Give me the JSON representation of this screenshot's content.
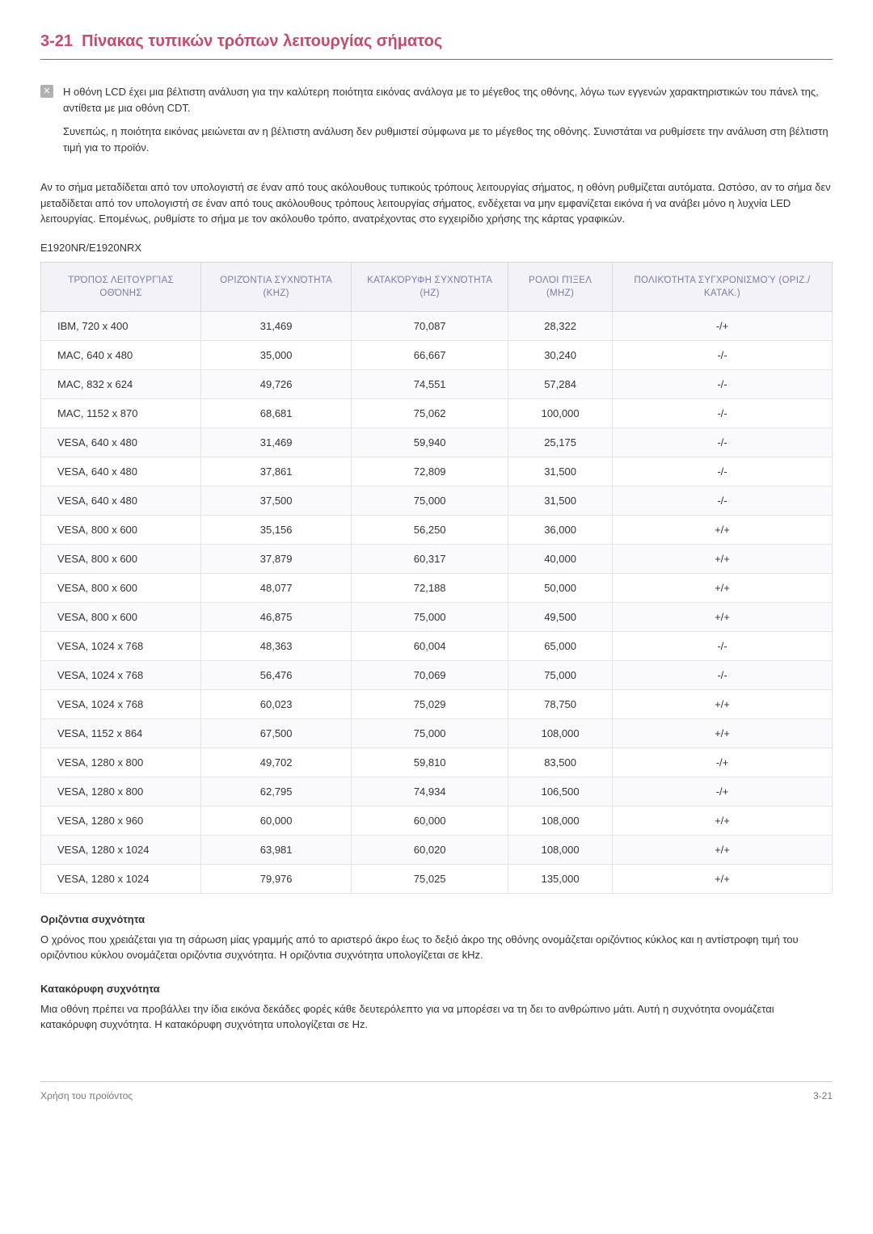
{
  "section": {
    "number": "3-21",
    "title": "Πίνακας τυπικών τρόπων λειτουργίας σήματος"
  },
  "note": {
    "p1": "Η οθόνη LCD έχει μια βέλτιστη ανάλυση για την καλύτερη ποιότητα εικόνας ανάλογα με το μέγεθος της οθόνης, λόγω των εγγενών χαρακτηριστικών του πάνελ της, αντίθετα με μια οθόνη CDT.",
    "p2": "Συνεπώς, η ποιότητα εικόνας μειώνεται αν η βέλτιστη ανάλυση δεν ρυθμιστεί σύμφωνα με το μέγεθος της οθόνης. Συνιστάται να ρυθμίσετε την ανάλυση στη βέλτιστη τιμή για το προϊόν."
  },
  "intro": "Αν το σήμα μεταδίδεται από τον υπολογιστή σε έναν από τους ακόλουθους τυπικούς τρόπους λειτουργίας σήματος, η οθόνη ρυθμίζεται αυτόματα. Ωστόσο, αν το σήμα δεν μεταδίδεται από τον υπολογιστή σε έναν από τους ακόλουθους τρόπους λειτουργίας σήματος, ενδέχεται να μην εμφανίζεται εικόνα ή να ανάβει μόνο η λυχνία LED λειτουργίας. Επομένως, ρυθμίστε το σήμα με τον ακόλουθο τρόπο, ανατρέχοντας στο εγχειρίδιο χρήσης της κάρτας γραφικών.",
  "model": "E1920NR/E1920NRX",
  "headers": {
    "c1": "ΤΡΌΠΟΣ ΛΕΙΤΟΥΡΓΊΑΣ ΟΘΌΝΗΣ",
    "c2": "ΟΡΙΖΌΝΤΙΑ ΣΥΧΝΌΤΗΤΑ (KHZ)",
    "c3": "ΚΑΤΑΚΌΡΥΦΗ ΣΥΧΝΌΤΗΤΑ (HZ)",
    "c4": "ΡΟΛΌΙ ΠΊΞΕΛ (MHZ)",
    "c5": "ΠΟΛΙΚΌΤΗΤΑ ΣΥΓΧΡΟΝΙΣΜΟΎ (ΟΡΙΖ./ΚΑΤΑΚ.)"
  },
  "rows": [
    {
      "c1": "IBM, 720 x 400",
      "c2": "31,469",
      "c3": "70,087",
      "c4": "28,322",
      "c5": "-/+"
    },
    {
      "c1": "MAC, 640 x 480",
      "c2": "35,000",
      "c3": "66,667",
      "c4": "30,240",
      "c5": "-/-"
    },
    {
      "c1": "MAC, 832 x 624",
      "c2": "49,726",
      "c3": "74,551",
      "c4": "57,284",
      "c5": "-/-"
    },
    {
      "c1": "MAC, 1152 x 870",
      "c2": "68,681",
      "c3": "75,062",
      "c4": "100,000",
      "c5": "-/-"
    },
    {
      "c1": "VESA, 640 x 480",
      "c2": "31,469",
      "c3": "59,940",
      "c4": "25,175",
      "c5": "-/-"
    },
    {
      "c1": "VESA, 640 x 480",
      "c2": "37,861",
      "c3": "72,809",
      "c4": "31,500",
      "c5": "-/-"
    },
    {
      "c1": "VESA, 640 x 480",
      "c2": "37,500",
      "c3": "75,000",
      "c4": "31,500",
      "c5": "-/-"
    },
    {
      "c1": "VESA, 800 x 600",
      "c2": "35,156",
      "c3": "56,250",
      "c4": "36,000",
      "c5": "+/+"
    },
    {
      "c1": "VESA, 800 x 600",
      "c2": "37,879",
      "c3": "60,317",
      "c4": "40,000",
      "c5": "+/+"
    },
    {
      "c1": "VESA, 800 x 600",
      "c2": "48,077",
      "c3": "72,188",
      "c4": "50,000",
      "c5": "+/+"
    },
    {
      "c1": "VESA, 800 x 600",
      "c2": "46,875",
      "c3": "75,000",
      "c4": "49,500",
      "c5": "+/+"
    },
    {
      "c1": "VESA, 1024 x 768",
      "c2": "48,363",
      "c3": "60,004",
      "c4": "65,000",
      "c5": "-/-"
    },
    {
      "c1": "VESA, 1024 x 768",
      "c2": "56,476",
      "c3": "70,069",
      "c4": "75,000",
      "c5": "-/-"
    },
    {
      "c1": "VESA, 1024 x 768",
      "c2": "60,023",
      "c3": "75,029",
      "c4": "78,750",
      "c5": "+/+"
    },
    {
      "c1": "VESA, 1152 x 864",
      "c2": "67,500",
      "c3": "75,000",
      "c4": "108,000",
      "c5": "+/+"
    },
    {
      "c1": "VESA, 1280 x 800",
      "c2": "49,702",
      "c3": "59,810",
      "c4": "83,500",
      "c5": "-/+"
    },
    {
      "c1": "VESA, 1280 x 800",
      "c2": "62,795",
      "c3": "74,934",
      "c4": "106,500",
      "c5": "-/+"
    },
    {
      "c1": "VESA, 1280 x 960",
      "c2": "60,000",
      "c3": "60,000",
      "c4": "108,000",
      "c5": "+/+"
    },
    {
      "c1": "VESA, 1280 x 1024",
      "c2": "63,981",
      "c3": "60,020",
      "c4": "108,000",
      "c5": "+/+"
    },
    {
      "c1": "VESA, 1280 x 1024",
      "c2": "79,976",
      "c3": "75,025",
      "c4": "135,000",
      "c5": "+/+"
    }
  ],
  "def1": {
    "title": "Οριζόντια συχνότητα",
    "body": "Ο χρόνος που χρειάζεται για τη σάρωση μίας γραμμής από το αριστερό άκρο έως το δεξιό άκρο της οθόνης ονομάζεται οριζόντιος κύκλος και η αντίστροφη τιμή του οριζόντιου κύκλου ονομάζεται οριζόντια συχνότητα. Η οριζόντια συχνότητα υπολογίζεται σε kHz."
  },
  "def2": {
    "title": "Κατακόρυφη συχνότητα",
    "body": "Μια οθόνη πρέπει να προβάλλει την ίδια εικόνα δεκάδες φορές κάθε δευτερόλεπτο για να μπορέσει να τη δει το ανθρώπινο μάτι. Αυτή η συχνότητα ονομάζεται κατακόρυφη συχνότητα. Η κατακόρυφη συχνότητα υπολογίζεται σε Hz."
  },
  "footer": {
    "left": "Χρήση του προϊόντος",
    "right": "3-21"
  }
}
